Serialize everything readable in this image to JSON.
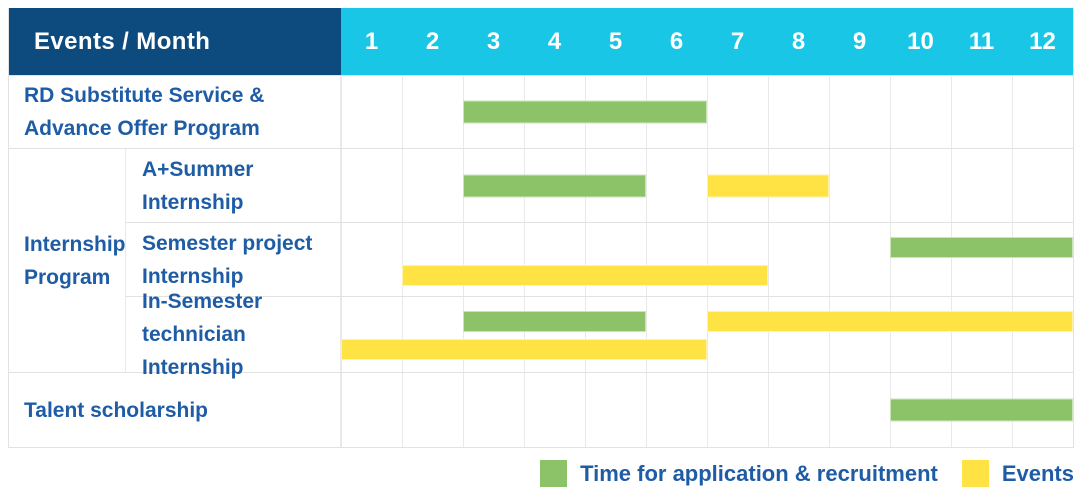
{
  "header": {
    "title": "Events / Month",
    "months": [
      "1",
      "2",
      "3",
      "4",
      "5",
      "6",
      "7",
      "8",
      "9",
      "10",
      "11",
      "12"
    ]
  },
  "labels": {
    "rd_line1": "RD Substitute Service &",
    "rd_line2": "Advance Offer Program",
    "group_line1": "Internship",
    "group_line2": "Program",
    "summer_line1": "A+Summer",
    "summer_line2": "Internship",
    "semester_line1": "Semester project",
    "semester_line2": "Internship",
    "insemester_line1": "In-Semester",
    "insemester_line2": "technician Internship",
    "talent": "Talent scholarship"
  },
  "legend": {
    "application": "Time for application & recruitment",
    "events": "Events"
  },
  "colors": {
    "header_navy": "#0d4a7d",
    "header_cyan": "#19c6e6",
    "bar_green": "#8cc368",
    "bar_yellow": "#ffe243",
    "label_blue": "#1e5ca6",
    "grid_line": "#e9e9e9",
    "row_border": "#e2e2e2"
  },
  "chart_data": {
    "type": "bar",
    "subtype": "gantt",
    "title": "Events / Month",
    "x": {
      "label": "Month",
      "ticks": [
        1,
        2,
        3,
        4,
        5,
        6,
        7,
        8,
        9,
        10,
        11,
        12
      ],
      "range": [
        1,
        12
      ]
    },
    "legend": [
      {
        "series": "application",
        "label": "Time for application & recruitment",
        "color": "#8cc368"
      },
      {
        "series": "events",
        "label": "Events",
        "color": "#ffe243"
      }
    ],
    "rows": [
      {
        "group": "",
        "label": "RD Substitute Service & Advance Offer Program",
        "bars": [
          {
            "series": "application",
            "start_month": 3,
            "end_month": 6,
            "lane": "center"
          }
        ]
      },
      {
        "group": "Internship Program",
        "label": "A+Summer Internship",
        "bars": [
          {
            "series": "application",
            "start_month": 3,
            "end_month": 5,
            "lane": "center"
          },
          {
            "series": "events",
            "start_month": 7,
            "end_month": 8,
            "lane": "center"
          }
        ]
      },
      {
        "group": "Internship Program",
        "label": "Semester project Internship",
        "bars": [
          {
            "series": "application",
            "start_month": 10,
            "end_month": 12,
            "lane": "upper"
          },
          {
            "series": "events",
            "start_month": 2,
            "end_month": 7,
            "lane": "lower"
          }
        ]
      },
      {
        "group": "Internship Program",
        "label": "In-Semester technician Internship",
        "bars": [
          {
            "series": "application",
            "start_month": 3,
            "end_month": 5,
            "lane": "upper"
          },
          {
            "series": "events",
            "start_month": 7,
            "end_month": 12,
            "lane": "upper"
          },
          {
            "series": "events",
            "start_month": 1,
            "end_month": 6,
            "lane": "lower"
          }
        ]
      },
      {
        "group": "",
        "label": "Talent scholarship",
        "bars": [
          {
            "series": "application",
            "start_month": 10,
            "end_month": 12,
            "lane": "center"
          }
        ]
      }
    ]
  }
}
